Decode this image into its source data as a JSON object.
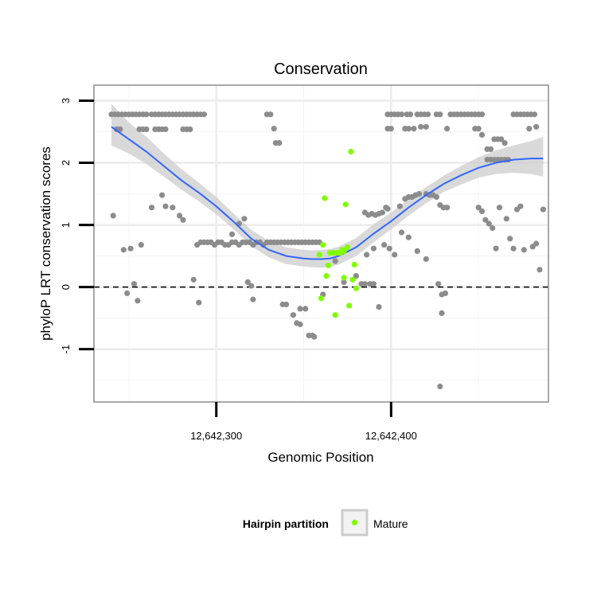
{
  "chart_data": {
    "type": "scatter",
    "title": "Conservation",
    "xlabel": "Genomic Position",
    "ylabel": "phyloP LRT conservation scores",
    "xlim": [
      12642230,
      12642490
    ],
    "ylim": [
      -1.85,
      3.25
    ],
    "x_ticks": [
      12642300,
      12642400
    ],
    "x_tick_labels": [
      "12,642,300",
      "12,642,400"
    ],
    "y_ticks": [
      -1,
      0,
      1,
      2,
      3
    ],
    "y_tick_labels": [
      "-1",
      "0",
      "1",
      "2",
      "3"
    ],
    "grid": true,
    "reference_line": {
      "y": 0,
      "style": "dashed"
    },
    "legend": {
      "title": "Hairpin partition",
      "entries": [
        "Mature"
      ],
      "position": "bottom"
    },
    "colors": {
      "other": "#8c8c8c",
      "mature": "#7fff00",
      "smooth_line": "#3366ff",
      "ribbon": "#cccccc"
    },
    "series": [
      {
        "role": "other",
        "points": [
          [
            12642240,
            2.78
          ],
          [
            12642242,
            2.78
          ],
          [
            12642244,
            2.78
          ],
          [
            12642246,
            2.78
          ],
          [
            12642248,
            2.78
          ],
          [
            12642250,
            2.78
          ],
          [
            12642252,
            2.78
          ],
          [
            12642254,
            2.78
          ],
          [
            12642256,
            2.78
          ],
          [
            12642258,
            2.78
          ],
          [
            12642260,
            2.78
          ],
          [
            12642263,
            2.78
          ],
          [
            12642265,
            2.78
          ],
          [
            12642267,
            2.78
          ],
          [
            12642269,
            2.78
          ],
          [
            12642271,
            2.78
          ],
          [
            12642273,
            2.78
          ],
          [
            12642275,
            2.78
          ],
          [
            12642277,
            2.78
          ],
          [
            12642279,
            2.78
          ],
          [
            12642281,
            2.78
          ],
          [
            12642283,
            2.78
          ],
          [
            12642285,
            2.78
          ],
          [
            12642287,
            2.78
          ],
          [
            12642289,
            2.78
          ],
          [
            12642291,
            2.78
          ],
          [
            12642293,
            2.78
          ],
          [
            12642243,
            2.54
          ],
          [
            12642245,
            2.54
          ],
          [
            12642256,
            2.54
          ],
          [
            12642258,
            2.54
          ],
          [
            12642260,
            2.54
          ],
          [
            12642265,
            2.54
          ],
          [
            12642267,
            2.54
          ],
          [
            12642269,
            2.54
          ],
          [
            12642271,
            2.54
          ],
          [
            12642281,
            2.54
          ],
          [
            12642283,
            2.54
          ],
          [
            12642285,
            2.54
          ],
          [
            12642241,
            1.15
          ],
          [
            12642247,
            0.6
          ],
          [
            12642249,
            -0.1
          ],
          [
            12642251,
            0.62
          ],
          [
            12642253,
            0.05
          ],
          [
            12642255,
            -0.22
          ],
          [
            12642257,
            0.68
          ],
          [
            12642263,
            1.28
          ],
          [
            12642269,
            1.48
          ],
          [
            12642271,
            1.3
          ],
          [
            12642275,
            1.28
          ],
          [
            12642279,
            1.15
          ],
          [
            12642281,
            1.08
          ],
          [
            12642287,
            0.12
          ],
          [
            12642290,
            -0.25
          ],
          [
            12642289,
            0.68
          ],
          [
            12642291,
            0.72
          ],
          [
            12642293,
            0.72
          ],
          [
            12642295,
            0.72
          ],
          [
            12642297,
            0.72
          ],
          [
            12642299,
            0.68
          ],
          [
            12642301,
            0.72
          ],
          [
            12642303,
            0.72
          ],
          [
            12642305,
            0.68
          ],
          [
            12642307,
            0.68
          ],
          [
            12642309,
            0.72
          ],
          [
            12642311,
            0.72
          ],
          [
            12642313,
            0.68
          ],
          [
            12642315,
            0.72
          ],
          [
            12642317,
            0.72
          ],
          [
            12642319,
            0.72
          ],
          [
            12642321,
            0.68
          ],
          [
            12642323,
            0.72
          ],
          [
            12642313,
            1.02
          ],
          [
            12642316,
            1.1
          ],
          [
            12642309,
            0.85
          ],
          [
            12642318,
            0.08
          ],
          [
            12642320,
            0.02
          ],
          [
            12642321,
            -0.2
          ],
          [
            12642325,
            0.72
          ],
          [
            12642327,
            0.68
          ],
          [
            12642329,
            2.78
          ],
          [
            12642331,
            2.78
          ],
          [
            12642333,
            2.55
          ],
          [
            12642334,
            2.32
          ],
          [
            12642336,
            2.32
          ],
          [
            12642329,
            0.72
          ],
          [
            12642331,
            0.72
          ],
          [
            12642333,
            0.72
          ],
          [
            12642335,
            0.72
          ],
          [
            12642337,
            0.72
          ],
          [
            12642339,
            0.72
          ],
          [
            12642341,
            0.72
          ],
          [
            12642343,
            0.72
          ],
          [
            12642345,
            0.72
          ],
          [
            12642347,
            0.72
          ],
          [
            12642349,
            0.72
          ],
          [
            12642351,
            0.72
          ],
          [
            12642353,
            0.72
          ],
          [
            12642355,
            0.72
          ],
          [
            12642357,
            0.72
          ],
          [
            12642359,
            0.72
          ],
          [
            12642338,
            -0.28
          ],
          [
            12642340,
            -0.28
          ],
          [
            12642344,
            -0.45
          ],
          [
            12642346,
            -0.58
          ],
          [
            12642348,
            -0.6
          ],
          [
            12642348,
            -0.35
          ],
          [
            12642351,
            -0.35
          ],
          [
            12642353,
            -0.78
          ],
          [
            12642355,
            -0.78
          ],
          [
            12642356,
            -0.8
          ],
          [
            12642361,
            -0.12
          ],
          [
            12642368,
            0.42
          ],
          [
            12642373,
            0.08
          ],
          [
            12642380,
            0.18
          ],
          [
            12642383,
            0.05
          ],
          [
            12642385,
            0.05
          ],
          [
            12642388,
            0.05
          ],
          [
            12642390,
            0.05
          ],
          [
            12642393,
            -0.32
          ],
          [
            12642386,
            0.52
          ],
          [
            12642390,
            0.62
          ],
          [
            12642385,
            1.2
          ],
          [
            12642387,
            1.16
          ],
          [
            12642389,
            1.18
          ],
          [
            12642391,
            1.16
          ],
          [
            12642393,
            1.18
          ],
          [
            12642395,
            1.2
          ],
          [
            12642397,
            1.28
          ],
          [
            12642398,
            1.26
          ],
          [
            12642396,
            0.68
          ],
          [
            12642399,
            0.62
          ],
          [
            12642402,
            0.52
          ],
          [
            12642398,
            2.78
          ],
          [
            12642400,
            2.78
          ],
          [
            12642402,
            2.78
          ],
          [
            12642404,
            2.78
          ],
          [
            12642406,
            2.78
          ],
          [
            12642409,
            2.78
          ],
          [
            12642411,
            2.78
          ],
          [
            12642415,
            2.78
          ],
          [
            12642417,
            2.78
          ],
          [
            12642419,
            2.78
          ],
          [
            12642421,
            2.78
          ],
          [
            12642426,
            2.78
          ],
          [
            12642428,
            2.78
          ],
          [
            12642434,
            2.78
          ],
          [
            12642436,
            2.78
          ],
          [
            12642438,
            2.78
          ],
          [
            12642440,
            2.78
          ],
          [
            12642442,
            2.78
          ],
          [
            12642444,
            2.78
          ],
          [
            12642446,
            2.78
          ],
          [
            12642448,
            2.78
          ],
          [
            12642450,
            2.78
          ],
          [
            12642452,
            2.78
          ],
          [
            12642398,
            2.55
          ],
          [
            12642400,
            2.55
          ],
          [
            12642408,
            2.55
          ],
          [
            12642410,
            2.55
          ],
          [
            12642413,
            2.55
          ],
          [
            12642417,
            2.58
          ],
          [
            12642420,
            2.58
          ],
          [
            12642432,
            2.55
          ],
          [
            12642448,
            2.55
          ],
          [
            12642450,
            2.55
          ],
          [
            12642405,
            1.3
          ],
          [
            12642408,
            1.42
          ],
          [
            12642410,
            1.45
          ],
          [
            12642412,
            1.45
          ],
          [
            12642414,
            1.48
          ],
          [
            12642416,
            1.5
          ],
          [
            12642420,
            1.5
          ],
          [
            12642422,
            1.48
          ],
          [
            12642424,
            1.48
          ],
          [
            12642426,
            1.45
          ],
          [
            12642428,
            1.32
          ],
          [
            12642430,
            1.28
          ],
          [
            12642432,
            1.28
          ],
          [
            12642406,
            0.88
          ],
          [
            12642410,
            0.8
          ],
          [
            12642415,
            0.58
          ],
          [
            12642420,
            0.45
          ],
          [
            12642427,
            0.05
          ],
          [
            12642429,
            -0.12
          ],
          [
            12642431,
            -0.1
          ],
          [
            12642429,
            -0.42
          ],
          [
            12642428,
            -1.6
          ],
          [
            12642452,
            2.45
          ],
          [
            12642455,
            2.22
          ],
          [
            12642457,
            2.22
          ],
          [
            12642459,
            2.38
          ],
          [
            12642461,
            2.38
          ],
          [
            12642463,
            2.38
          ],
          [
            12642465,
            2.32
          ],
          [
            12642455,
            2.05
          ],
          [
            12642457,
            2.05
          ],
          [
            12642459,
            2.05
          ],
          [
            12642461,
            2.05
          ],
          [
            12642463,
            2.05
          ],
          [
            12642465,
            2.05
          ],
          [
            12642467,
            2.05
          ],
          [
            12642450,
            1.28
          ],
          [
            12642452,
            1.22
          ],
          [
            12642454,
            1.08
          ],
          [
            12642456,
            1.02
          ],
          [
            12642458,
            0.95
          ],
          [
            12642460,
            0.62
          ],
          [
            12642462,
            1.28
          ],
          [
            12642466,
            1.1
          ],
          [
            12642468,
            0.78
          ],
          [
            12642470,
            0.62
          ],
          [
            12642472,
            1.25
          ],
          [
            12642474,
            1.3
          ],
          [
            12642476,
            0.6
          ],
          [
            12642470,
            2.78
          ],
          [
            12642472,
            2.78
          ],
          [
            12642474,
            2.78
          ],
          [
            12642476,
            2.78
          ],
          [
            12642478,
            2.78
          ],
          [
            12642480,
            2.78
          ],
          [
            12642482,
            2.78
          ],
          [
            12642479,
            2.55
          ],
          [
            12642483,
            2.58
          ],
          [
            12642481,
            0.65
          ],
          [
            12642483,
            0.7
          ],
          [
            12642485,
            0.28
          ],
          [
            12642487,
            1.25
          ]
        ]
      },
      {
        "role": "mature",
        "name": "Mature",
        "points": [
          [
            12642359,
            0.52
          ],
          [
            12642361,
            0.68
          ],
          [
            12642362,
            1.43
          ],
          [
            12642363,
            0.18
          ],
          [
            12642364,
            0.35
          ],
          [
            12642365,
            0.55
          ],
          [
            12642367,
            0.55
          ],
          [
            12642368,
            -0.45
          ],
          [
            12642369,
            0.55
          ],
          [
            12642370,
            0.55
          ],
          [
            12642371,
            0.55
          ],
          [
            12642372,
            0.6
          ],
          [
            12642373,
            0.58
          ],
          [
            12642374,
            1.33
          ],
          [
            12642375,
            0.64
          ],
          [
            12642376,
            -0.3
          ],
          [
            12642377,
            2.18
          ],
          [
            12642378,
            0.12
          ],
          [
            12642379,
            0.36
          ],
          [
            12642380,
            -0.02
          ],
          [
            12642360,
            -0.18
          ],
          [
            12642373,
            0.15
          ]
        ]
      }
    ],
    "smooth": {
      "x": [
        12642240,
        12642250,
        12642260,
        12642270,
        12642280,
        12642290,
        12642300,
        12642310,
        12642320,
        12642330,
        12642340,
        12642350,
        12642355,
        12642360,
        12642365,
        12642370,
        12642380,
        12642390,
        12642400,
        12642410,
        12642420,
        12642430,
        12642440,
        12642450,
        12642460,
        12642470,
        12642480,
        12642487
      ],
      "y": [
        2.58,
        2.38,
        2.18,
        1.95,
        1.72,
        1.52,
        1.3,
        1.05,
        0.78,
        0.6,
        0.5,
        0.46,
        0.45,
        0.45,
        0.46,
        0.5,
        0.64,
        0.86,
        1.06,
        1.28,
        1.48,
        1.66,
        1.8,
        1.92,
        2.0,
        2.05,
        2.07,
        2.07
      ],
      "lower": [
        2.28,
        2.15,
        1.98,
        1.78,
        1.57,
        1.38,
        1.17,
        0.93,
        0.66,
        0.48,
        0.37,
        0.33,
        0.32,
        0.31,
        0.32,
        0.36,
        0.5,
        0.72,
        0.93,
        1.15,
        1.35,
        1.53,
        1.65,
        1.76,
        1.82,
        1.84,
        1.82,
        1.78
      ],
      "upper": [
        2.95,
        2.65,
        2.42,
        2.15,
        1.9,
        1.68,
        1.45,
        1.18,
        0.92,
        0.74,
        0.64,
        0.6,
        0.59,
        0.6,
        0.61,
        0.65,
        0.79,
        1.01,
        1.2,
        1.42,
        1.61,
        1.79,
        1.95,
        2.09,
        2.2,
        2.28,
        2.35,
        2.42
      ]
    }
  }
}
